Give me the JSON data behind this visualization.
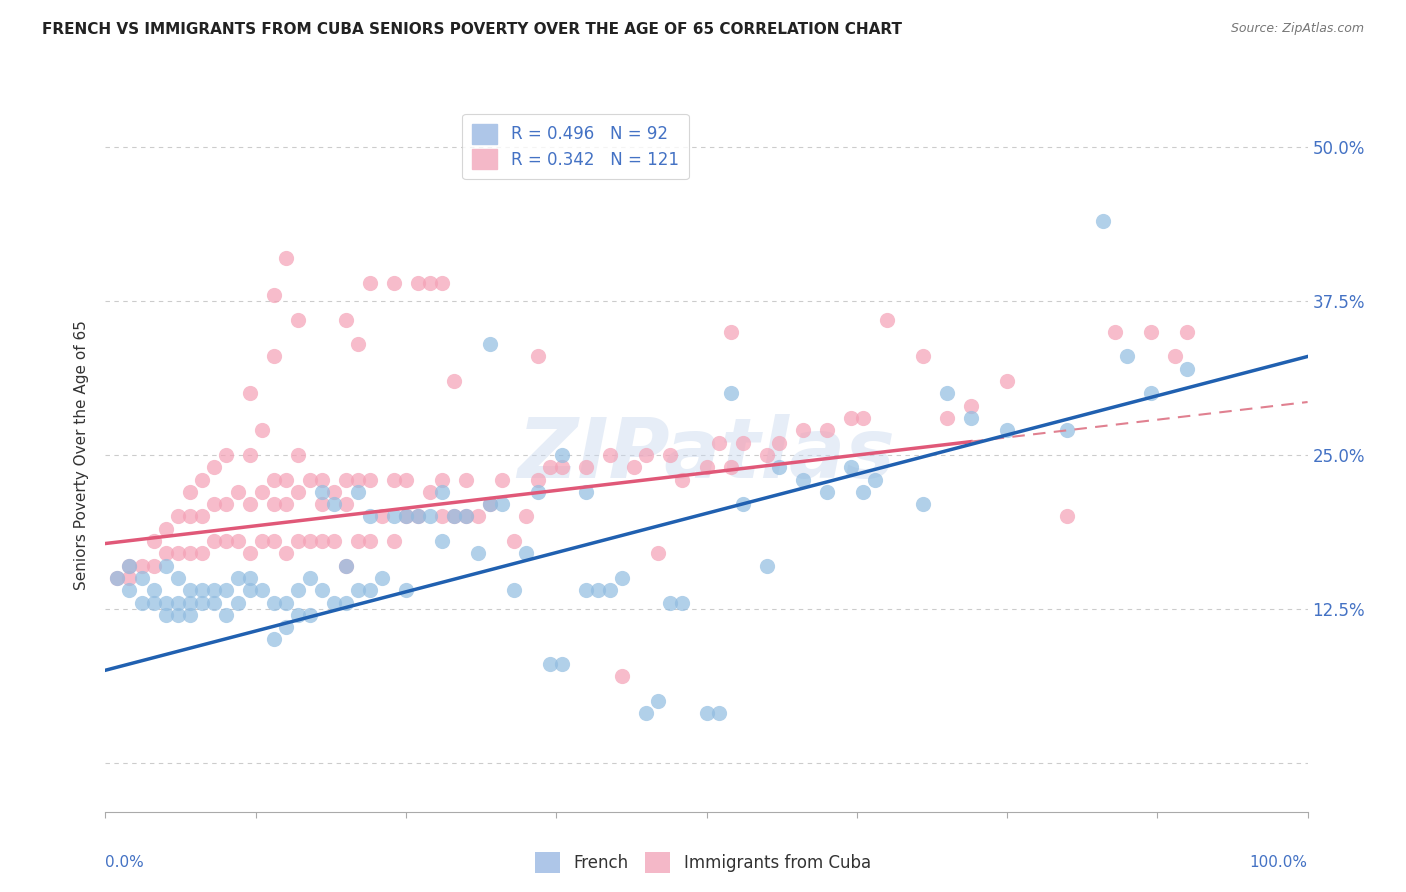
{
  "title": "FRENCH VS IMMIGRANTS FROM CUBA SENIORS POVERTY OVER THE AGE OF 65 CORRELATION CHART",
  "source": "Source: ZipAtlas.com",
  "ylabel": "Seniors Poverty Over the Age of 65",
  "yticks": [
    0.0,
    0.125,
    0.25,
    0.375,
    0.5
  ],
  "ytick_labels": [
    "",
    "12.5%",
    "25.0%",
    "37.5%",
    "50.0%"
  ],
  "xlim": [
    0.0,
    1.0
  ],
  "ylim": [
    -0.04,
    0.54
  ],
  "blue_color": "#91bce0",
  "pink_color": "#f4a0b5",
  "blue_line_color": "#2060b0",
  "pink_line_color": "#e05878",
  "pink_dash_color": "#e08090",
  "watermark": "ZIPatlas",
  "blue_intercept": 0.075,
  "blue_slope": 0.255,
  "pink_intercept": 0.178,
  "pink_slope": 0.115,
  "blue_scatter": [
    [
      0.01,
      0.15
    ],
    [
      0.02,
      0.16
    ],
    [
      0.02,
      0.14
    ],
    [
      0.03,
      0.13
    ],
    [
      0.03,
      0.15
    ],
    [
      0.04,
      0.13
    ],
    [
      0.04,
      0.14
    ],
    [
      0.05,
      0.12
    ],
    [
      0.05,
      0.13
    ],
    [
      0.05,
      0.16
    ],
    [
      0.06,
      0.12
    ],
    [
      0.06,
      0.13
    ],
    [
      0.06,
      0.15
    ],
    [
      0.07,
      0.12
    ],
    [
      0.07,
      0.13
    ],
    [
      0.07,
      0.14
    ],
    [
      0.08,
      0.13
    ],
    [
      0.08,
      0.14
    ],
    [
      0.09,
      0.13
    ],
    [
      0.09,
      0.14
    ],
    [
      0.1,
      0.12
    ],
    [
      0.1,
      0.14
    ],
    [
      0.11,
      0.13
    ],
    [
      0.11,
      0.15
    ],
    [
      0.12,
      0.14
    ],
    [
      0.12,
      0.15
    ],
    [
      0.13,
      0.14
    ],
    [
      0.14,
      0.1
    ],
    [
      0.14,
      0.13
    ],
    [
      0.15,
      0.11
    ],
    [
      0.15,
      0.13
    ],
    [
      0.16,
      0.12
    ],
    [
      0.16,
      0.14
    ],
    [
      0.17,
      0.12
    ],
    [
      0.17,
      0.15
    ],
    [
      0.18,
      0.14
    ],
    [
      0.18,
      0.22
    ],
    [
      0.19,
      0.13
    ],
    [
      0.19,
      0.21
    ],
    [
      0.2,
      0.13
    ],
    [
      0.2,
      0.16
    ],
    [
      0.21,
      0.14
    ],
    [
      0.21,
      0.22
    ],
    [
      0.22,
      0.14
    ],
    [
      0.22,
      0.2
    ],
    [
      0.23,
      0.15
    ],
    [
      0.24,
      0.2
    ],
    [
      0.25,
      0.14
    ],
    [
      0.25,
      0.2
    ],
    [
      0.26,
      0.2
    ],
    [
      0.27,
      0.2
    ],
    [
      0.28,
      0.18
    ],
    [
      0.28,
      0.22
    ],
    [
      0.29,
      0.2
    ],
    [
      0.3,
      0.2
    ],
    [
      0.31,
      0.17
    ],
    [
      0.32,
      0.21
    ],
    [
      0.32,
      0.34
    ],
    [
      0.33,
      0.21
    ],
    [
      0.34,
      0.14
    ],
    [
      0.35,
      0.17
    ],
    [
      0.36,
      0.22
    ],
    [
      0.37,
      0.08
    ],
    [
      0.38,
      0.08
    ],
    [
      0.38,
      0.25
    ],
    [
      0.4,
      0.14
    ],
    [
      0.4,
      0.22
    ],
    [
      0.41,
      0.14
    ],
    [
      0.42,
      0.14
    ],
    [
      0.43,
      0.15
    ],
    [
      0.45,
      0.04
    ],
    [
      0.46,
      0.05
    ],
    [
      0.47,
      0.13
    ],
    [
      0.48,
      0.13
    ],
    [
      0.5,
      0.04
    ],
    [
      0.51,
      0.04
    ],
    [
      0.52,
      0.3
    ],
    [
      0.53,
      0.21
    ],
    [
      0.55,
      0.16
    ],
    [
      0.56,
      0.24
    ],
    [
      0.58,
      0.23
    ],
    [
      0.6,
      0.22
    ],
    [
      0.62,
      0.24
    ],
    [
      0.63,
      0.22
    ],
    [
      0.64,
      0.23
    ],
    [
      0.68,
      0.21
    ],
    [
      0.7,
      0.3
    ],
    [
      0.72,
      0.28
    ],
    [
      0.75,
      0.27
    ],
    [
      0.8,
      0.27
    ],
    [
      0.83,
      0.44
    ],
    [
      0.85,
      0.33
    ],
    [
      0.87,
      0.3
    ],
    [
      0.9,
      0.32
    ]
  ],
  "pink_scatter": [
    [
      0.01,
      0.15
    ],
    [
      0.02,
      0.15
    ],
    [
      0.02,
      0.16
    ],
    [
      0.03,
      0.16
    ],
    [
      0.04,
      0.16
    ],
    [
      0.04,
      0.18
    ],
    [
      0.05,
      0.17
    ],
    [
      0.05,
      0.19
    ],
    [
      0.06,
      0.17
    ],
    [
      0.06,
      0.2
    ],
    [
      0.07,
      0.17
    ],
    [
      0.07,
      0.2
    ],
    [
      0.07,
      0.22
    ],
    [
      0.08,
      0.17
    ],
    [
      0.08,
      0.2
    ],
    [
      0.08,
      0.23
    ],
    [
      0.09,
      0.18
    ],
    [
      0.09,
      0.21
    ],
    [
      0.09,
      0.24
    ],
    [
      0.1,
      0.18
    ],
    [
      0.1,
      0.21
    ],
    [
      0.1,
      0.25
    ],
    [
      0.11,
      0.18
    ],
    [
      0.11,
      0.22
    ],
    [
      0.12,
      0.17
    ],
    [
      0.12,
      0.21
    ],
    [
      0.12,
      0.25
    ],
    [
      0.12,
      0.3
    ],
    [
      0.13,
      0.18
    ],
    [
      0.13,
      0.22
    ],
    [
      0.13,
      0.27
    ],
    [
      0.14,
      0.18
    ],
    [
      0.14,
      0.21
    ],
    [
      0.14,
      0.23
    ],
    [
      0.14,
      0.33
    ],
    [
      0.14,
      0.38
    ],
    [
      0.15,
      0.17
    ],
    [
      0.15,
      0.21
    ],
    [
      0.15,
      0.23
    ],
    [
      0.15,
      0.41
    ],
    [
      0.16,
      0.18
    ],
    [
      0.16,
      0.22
    ],
    [
      0.16,
      0.25
    ],
    [
      0.16,
      0.36
    ],
    [
      0.17,
      0.18
    ],
    [
      0.17,
      0.23
    ],
    [
      0.18,
      0.18
    ],
    [
      0.18,
      0.21
    ],
    [
      0.18,
      0.23
    ],
    [
      0.19,
      0.18
    ],
    [
      0.19,
      0.22
    ],
    [
      0.2,
      0.16
    ],
    [
      0.2,
      0.21
    ],
    [
      0.2,
      0.23
    ],
    [
      0.2,
      0.36
    ],
    [
      0.21,
      0.18
    ],
    [
      0.21,
      0.23
    ],
    [
      0.21,
      0.34
    ],
    [
      0.22,
      0.18
    ],
    [
      0.22,
      0.23
    ],
    [
      0.22,
      0.39
    ],
    [
      0.23,
      0.2
    ],
    [
      0.24,
      0.18
    ],
    [
      0.24,
      0.23
    ],
    [
      0.24,
      0.39
    ],
    [
      0.25,
      0.2
    ],
    [
      0.25,
      0.23
    ],
    [
      0.26,
      0.2
    ],
    [
      0.26,
      0.39
    ],
    [
      0.27,
      0.22
    ],
    [
      0.27,
      0.39
    ],
    [
      0.28,
      0.2
    ],
    [
      0.28,
      0.23
    ],
    [
      0.28,
      0.39
    ],
    [
      0.29,
      0.2
    ],
    [
      0.29,
      0.31
    ],
    [
      0.3,
      0.2
    ],
    [
      0.3,
      0.23
    ],
    [
      0.31,
      0.2
    ],
    [
      0.32,
      0.21
    ],
    [
      0.33,
      0.23
    ],
    [
      0.34,
      0.18
    ],
    [
      0.35,
      0.2
    ],
    [
      0.36,
      0.23
    ],
    [
      0.36,
      0.33
    ],
    [
      0.37,
      0.24
    ],
    [
      0.38,
      0.24
    ],
    [
      0.4,
      0.24
    ],
    [
      0.42,
      0.25
    ],
    [
      0.43,
      0.07
    ],
    [
      0.44,
      0.24
    ],
    [
      0.45,
      0.25
    ],
    [
      0.46,
      0.17
    ],
    [
      0.47,
      0.25
    ],
    [
      0.48,
      0.23
    ],
    [
      0.5,
      0.24
    ],
    [
      0.51,
      0.26
    ],
    [
      0.52,
      0.24
    ],
    [
      0.52,
      0.35
    ],
    [
      0.53,
      0.26
    ],
    [
      0.55,
      0.25
    ],
    [
      0.56,
      0.26
    ],
    [
      0.58,
      0.27
    ],
    [
      0.6,
      0.27
    ],
    [
      0.62,
      0.28
    ],
    [
      0.63,
      0.28
    ],
    [
      0.65,
      0.36
    ],
    [
      0.68,
      0.33
    ],
    [
      0.7,
      0.28
    ],
    [
      0.72,
      0.29
    ],
    [
      0.75,
      0.31
    ],
    [
      0.8,
      0.2
    ],
    [
      0.84,
      0.35
    ],
    [
      0.87,
      0.35
    ],
    [
      0.89,
      0.33
    ],
    [
      0.9,
      0.35
    ]
  ]
}
